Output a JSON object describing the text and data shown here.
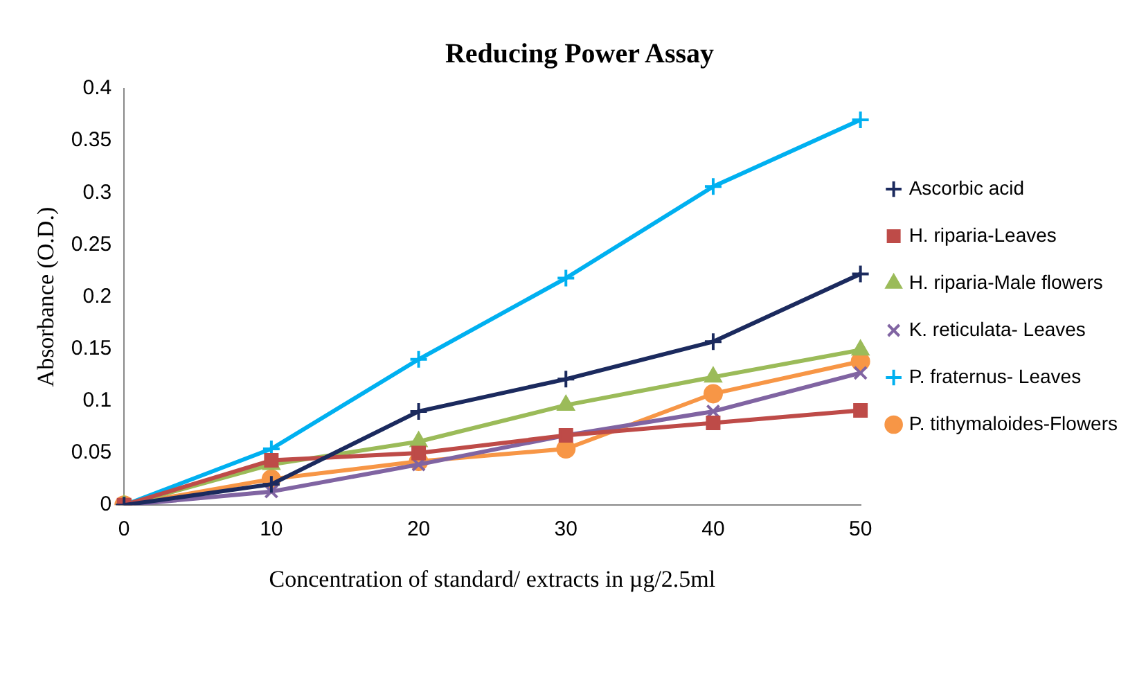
{
  "chart_data": {
    "type": "line",
    "title": "Reducing Power Assay",
    "xlabel": "Concentration of standard/ extracts in µg/2.5ml",
    "ylabel": "Absorbance (O.D.)",
    "categories": [
      "0",
      "10",
      "20",
      "30",
      "40",
      "50"
    ],
    "series": [
      {
        "name": "Ascorbic acid",
        "color": "#1b2a5e",
        "marker": "cross",
        "values": [
          0,
          0.02,
          0.09,
          0.121,
          0.157,
          0.222
        ]
      },
      {
        "name": "H. riparia-Leaves",
        "color": "#be4b48",
        "marker": "square",
        "values": [
          0,
          0.043,
          0.05,
          0.067,
          0.079,
          0.091
        ]
      },
      {
        "name": "H. riparia-Male flowers",
        "color": "#9bbb59",
        "marker": "triangle",
        "values": [
          0,
          0.039,
          0.061,
          0.096,
          0.123,
          0.149
        ]
      },
      {
        "name": "K. reticulata- Leaves",
        "color": "#8064a2",
        "marker": "x",
        "values": [
          0,
          0.013,
          0.039,
          0.067,
          0.09,
          0.127
        ]
      },
      {
        "name": "P. fraternus- Leaves",
        "color": "#00b0f0",
        "marker": "cross",
        "values": [
          0,
          0.054,
          0.14,
          0.218,
          0.306,
          0.37
        ]
      },
      {
        "name": "P. tithymaloides-Flowers",
        "color": "#f79646",
        "marker": "circle",
        "values": [
          0,
          0.025,
          0.042,
          0.054,
          0.107,
          0.138
        ]
      }
    ],
    "ylim": [
      0,
      0.4
    ],
    "yticks": [
      0,
      0.05,
      0.1,
      0.15,
      0.2,
      0.25,
      0.3,
      0.35,
      0.4
    ],
    "grid": false,
    "legend": "right"
  }
}
